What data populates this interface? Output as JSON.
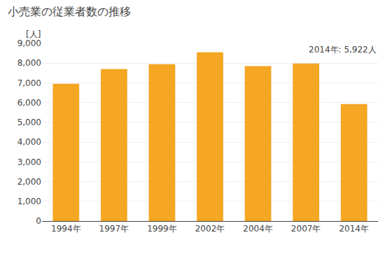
{
  "chart_data": {
    "type": "bar",
    "title": "小売業の従業者数の推移",
    "ylabel": "[人]",
    "annotation": "2014年: 5,922人",
    "categories": [
      "1994年",
      "1997年",
      "1999年",
      "2002年",
      "2004年",
      "2007年",
      "2014年"
    ],
    "values": [
      6950,
      7700,
      7950,
      8550,
      7850,
      7980,
      5922
    ],
    "color": "#F5A623",
    "ylim": [
      0,
      9000
    ],
    "yticks": [
      0,
      {
        "value": 1000,
        "label": "1,000"
      },
      {
        "value": 2000,
        "label": "2,000"
      },
      {
        "value": 3000,
        "label": "3,000"
      },
      {
        "value": 4000,
        "label": "4,000"
      },
      {
        "value": 5000,
        "label": "5,000"
      },
      {
        "value": 6000,
        "label": "6,000"
      },
      {
        "value": 7000,
        "label": "7,000"
      },
      {
        "value": 8000,
        "label": "8,000"
      },
      {
        "value": 9000,
        "label": "9,000"
      }
    ],
    "grid": true
  }
}
